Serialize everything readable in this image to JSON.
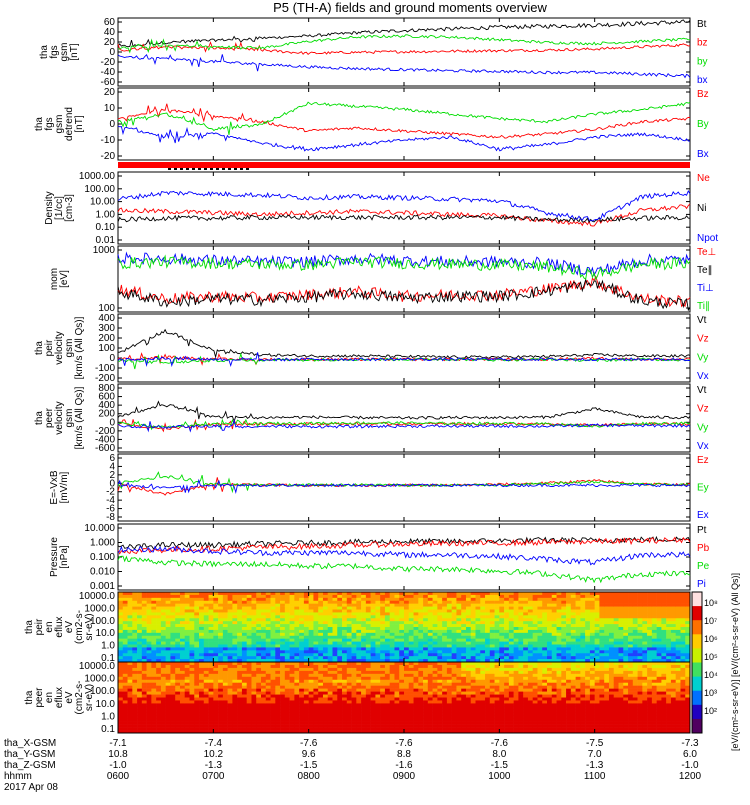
{
  "title": "P5 (TH-A) fields and ground moments overview",
  "colors": {
    "black": "#000000",
    "red": "#ff0000",
    "green": "#00dd00",
    "blue": "#0000ff"
  },
  "chart_data": [
    {
      "type": "line",
      "ylabel": [
        "tha",
        "fgs",
        "gsm",
        "[nT]"
      ],
      "yticks": [
        "60",
        "40",
        "20",
        "0",
        "-20",
        "-40",
        "-60"
      ],
      "ylim": [
        -60,
        65
      ],
      "legend": [
        {
          "name": "Bt",
          "color": "#000000"
        },
        {
          "name": "bz",
          "color": "#ff0000"
        },
        {
          "name": "by",
          "color": "#00dd00"
        },
        {
          "name": "bx",
          "color": "#0000ff"
        }
      ],
      "x": [
        "0600",
        "0630",
        "0700",
        "0730",
        "0800",
        "0830",
        "0900",
        "0930",
        "1000",
        "1030",
        "1100",
        "1130",
        "1200"
      ],
      "series": [
        {
          "name": "Bt",
          "values": [
            12,
            20,
            24,
            28,
            32,
            38,
            42,
            45,
            48,
            50,
            52,
            55,
            58
          ]
        },
        {
          "name": "bz",
          "values": [
            5,
            12,
            10,
            6,
            0,
            2,
            3,
            4,
            5,
            6,
            8,
            12,
            16
          ]
        },
        {
          "name": "by",
          "values": [
            10,
            15,
            12,
            10,
            22,
            30,
            32,
            30,
            25,
            20,
            18,
            22,
            26
          ]
        },
        {
          "name": "bx",
          "values": [
            -5,
            -10,
            -15,
            -20,
            -25,
            -28,
            -30,
            -32,
            -33,
            -35,
            -35,
            -38,
            -42
          ]
        }
      ]
    },
    {
      "type": "line",
      "ylabel": [
        "tha",
        "fgs",
        "gsm",
        "detrend",
        "[nT]"
      ],
      "yticks": [
        "20",
        "10",
        "0",
        "-10",
        "-20"
      ],
      "ylim": [
        -25,
        22
      ],
      "legend": [
        {
          "name": "Bz",
          "color": "#ff0000"
        },
        {
          "name": "By",
          "color": "#00dd00"
        },
        {
          "name": "Bx",
          "color": "#0000ff"
        }
      ],
      "x": [
        "0600",
        "0630",
        "0700",
        "0730",
        "0800",
        "0830",
        "0900",
        "0930",
        "1000",
        "1030",
        "1100",
        "1130",
        "1200"
      ],
      "series": [
        {
          "name": "Bz",
          "values": [
            2,
            8,
            4,
            0,
            -6,
            -4,
            -6,
            -8,
            -10,
            -8,
            -5,
            0,
            2
          ]
        },
        {
          "name": "By",
          "values": [
            0,
            5,
            -5,
            -2,
            12,
            10,
            8,
            5,
            2,
            0,
            5,
            8,
            12
          ]
        },
        {
          "name": "Bx",
          "values": [
            -3,
            -10,
            -8,
            -14,
            -18,
            -15,
            -12,
            -10,
            -18,
            -15,
            -10,
            -8,
            -12
          ]
        }
      ]
    },
    {
      "type": "line",
      "ylabel": [
        "Density",
        "[1/cc]",
        "[cm-3]"
      ],
      "yticks": [
        "1000.00",
        "100.00",
        "10.00",
        "1.00",
        "0.10",
        "0.01"
      ],
      "ylim": [
        0.01,
        2000
      ],
      "log": true,
      "legend": [
        {
          "name": "Ne",
          "color": "#ff0000"
        },
        {
          "name": "Ni",
          "color": "#000000"
        },
        {
          "name": "Npot",
          "color": "#0000ff"
        }
      ],
      "x": [
        "0600",
        "0630",
        "0700",
        "0730",
        "0800",
        "0830",
        "0900",
        "0930",
        "1000",
        "1030",
        "1100",
        "1130",
        "1200"
      ],
      "series": [
        {
          "name": "Ne",
          "values": [
            3,
            2.5,
            2,
            1.5,
            2,
            2.5,
            2,
            1.5,
            1.2,
            0.5,
            0.3,
            3,
            6
          ]
        },
        {
          "name": "Ni",
          "values": [
            0.6,
            0.8,
            0.8,
            0.9,
            0.9,
            0.9,
            0.9,
            0.9,
            0.9,
            0.6,
            0.6,
            0.8,
            0.9
          ]
        },
        {
          "name": "Npot",
          "values": [
            20,
            60,
            50,
            40,
            25,
            30,
            25,
            20,
            15,
            2,
            0.6,
            30,
            60
          ]
        }
      ]
    },
    {
      "type": "line",
      "ylabel": [
        "mom",
        "[eV]"
      ],
      "yticks": [
        "1000",
        "100"
      ],
      "ylim": [
        60,
        6000
      ],
      "log": true,
      "legend": [
        {
          "name": "Te⊥",
          "color": "#ff0000"
        },
        {
          "name": "Te∥",
          "color": "#000000"
        },
        {
          "name": "Ti⊥",
          "color": "#0000ff"
        },
        {
          "name": "Ti∥",
          "color": "#00dd00"
        }
      ],
      "x": [
        "0600",
        "0630",
        "0700",
        "0730",
        "0800",
        "0830",
        "0900",
        "0930",
        "1000",
        "1030",
        "1100",
        "1130",
        "1200"
      ],
      "series": [
        {
          "name": "Te⊥",
          "values": [
            300,
            150,
            180,
            160,
            200,
            250,
            180,
            200,
            200,
            300,
            500,
            150,
            120
          ]
        },
        {
          "name": "Te∥",
          "values": [
            250,
            120,
            150,
            140,
            170,
            220,
            160,
            180,
            180,
            260,
            450,
            130,
            100
          ]
        },
        {
          "name": "Ti⊥",
          "values": [
            2500,
            2500,
            2200,
            2000,
            2000,
            2500,
            2200,
            2000,
            2000,
            1800,
            1000,
            2200,
            2300
          ]
        },
        {
          "name": "Ti∥",
          "values": [
            1800,
            2000,
            1800,
            1700,
            1600,
            2000,
            1800,
            1700,
            1600,
            1400,
            800,
            1700,
            1800
          ]
        }
      ]
    },
    {
      "type": "line",
      "ylabel": [
        "tha",
        "peir",
        "velocity",
        "gsm",
        "[km/s (All Qs)]"
      ],
      "yticks": [
        "400",
        "300",
        "200",
        "100",
        "0",
        "-100",
        "-200"
      ],
      "ylim": [
        -200,
        400
      ],
      "legend": [
        {
          "name": "Vt",
          "color": "#000000"
        },
        {
          "name": "Vz",
          "color": "#ff0000"
        },
        {
          "name": "Vy",
          "color": "#00dd00"
        },
        {
          "name": "Vx",
          "color": "#0000ff"
        }
      ],
      "x": [
        "0600",
        "0630",
        "0700",
        "0730",
        "0800",
        "0830",
        "0900",
        "0930",
        "1000",
        "1030",
        "1100",
        "1130",
        "1200"
      ],
      "series": [
        {
          "name": "Vt",
          "values": [
            60,
            250,
            80,
            40,
            30,
            30,
            25,
            20,
            20,
            25,
            40,
            30,
            30
          ]
        },
        {
          "name": "Vz",
          "values": [
            0,
            20,
            0,
            0,
            0,
            0,
            0,
            0,
            0,
            0,
            10,
            0,
            0
          ]
        },
        {
          "name": "Vy",
          "values": [
            -10,
            -30,
            -10,
            -5,
            -5,
            0,
            0,
            0,
            -5,
            0,
            -10,
            0,
            -5
          ]
        },
        {
          "name": "Vx",
          "values": [
            -5,
            10,
            0,
            -5,
            0,
            0,
            0,
            0,
            0,
            0,
            0,
            0,
            0
          ]
        }
      ]
    },
    {
      "type": "line",
      "ylabel": [
        "tha",
        "peer",
        "velocity",
        "gsm",
        "[km/s (All Qs)]"
      ],
      "yticks": [
        "800",
        "600",
        "400",
        "200",
        "0",
        "-200",
        "-400",
        "-600"
      ],
      "ylim": [
        -650,
        850
      ],
      "legend": [
        {
          "name": "Vt",
          "color": "#000000"
        },
        {
          "name": "Vz",
          "color": "#ff0000"
        },
        {
          "name": "Vy",
          "color": "#00dd00"
        },
        {
          "name": "Vx",
          "color": "#0000ff"
        }
      ],
      "x": [
        "0600",
        "0630",
        "0700",
        "0730",
        "0800",
        "0830",
        "0900",
        "0930",
        "1000",
        "1030",
        "1100",
        "1130",
        "1200"
      ],
      "series": [
        {
          "name": "Vt",
          "values": [
            120,
            400,
            130,
            110,
            120,
            110,
            100,
            110,
            110,
            120,
            300,
            120,
            110
          ]
        },
        {
          "name": "Vz",
          "values": [
            -30,
            -150,
            -40,
            -30,
            -30,
            -30,
            -30,
            -30,
            -30,
            -40,
            -60,
            -30,
            -30
          ]
        },
        {
          "name": "Vy",
          "values": [
            -20,
            -100,
            -30,
            -20,
            -20,
            -10,
            -10,
            -20,
            -20,
            -30,
            -80,
            -20,
            -20
          ]
        },
        {
          "name": "Vx",
          "values": [
            -80,
            -100,
            -80,
            -80,
            -90,
            -90,
            -80,
            -80,
            -80,
            -80,
            -60,
            -70,
            -70
          ]
        }
      ]
    },
    {
      "type": "line",
      "ylabel": [
        "E=-VxB",
        "[mV/m]"
      ],
      "yticks": [
        "6",
        "4",
        "2",
        "0",
        "-2",
        "-4",
        "-6",
        "-8"
      ],
      "ylim": [
        -8,
        7
      ],
      "legend": [
        {
          "name": "Ez",
          "color": "#ff0000"
        },
        {
          "name": "Ey",
          "color": "#00dd00"
        },
        {
          "name": "Ex",
          "color": "#0000ff"
        }
      ],
      "x": [
        "0600",
        "0630",
        "0700",
        "0730",
        "0800",
        "0830",
        "0900",
        "0930",
        "1000",
        "1030",
        "1100",
        "1130",
        "1200"
      ],
      "series": [
        {
          "name": "Ez",
          "values": [
            0.2,
            -2,
            0.3,
            0.1,
            0,
            0,
            0,
            0,
            0.2,
            0.5,
            1,
            0.3,
            0.1
          ]
        },
        {
          "name": "Ey",
          "values": [
            0.5,
            2,
            0.2,
            0.1,
            0.1,
            0.1,
            0,
            0,
            0.1,
            0.3,
            0.8,
            0.2,
            0.1
          ]
        },
        {
          "name": "Ex",
          "values": [
            0,
            -0.5,
            0,
            0,
            0,
            0,
            0,
            0,
            0,
            0,
            0,
            0,
            0
          ]
        }
      ]
    },
    {
      "type": "line",
      "ylabel": [
        "Pressure",
        "[nPa]"
      ],
      "yticks": [
        "10.000",
        "1.000",
        "0.100",
        "0.010",
        "0.001"
      ],
      "ylim": [
        0.001,
        12
      ],
      "log": true,
      "legend": [
        {
          "name": "Pt",
          "color": "#000000"
        },
        {
          "name": "Pb",
          "color": "#ff0000"
        },
        {
          "name": "Pe",
          "color": "#00dd00"
        },
        {
          "name": "Pi",
          "color": "#0000ff"
        }
      ],
      "x": [
        "0600",
        "0630",
        "0700",
        "0730",
        "0800",
        "0830",
        "0900",
        "0930",
        "1000",
        "1030",
        "1100",
        "1130",
        "1200"
      ],
      "series": [
        {
          "name": "Pt",
          "values": [
            0.4,
            0.6,
            0.6,
            0.7,
            0.8,
            0.9,
            1.0,
            1.0,
            1.1,
            1.2,
            1.2,
            1.3,
            1.4
          ]
        },
        {
          "name": "Pb",
          "values": [
            0.25,
            0.3,
            0.35,
            0.45,
            0.5,
            0.6,
            0.7,
            0.75,
            0.8,
            0.9,
            1.0,
            1.1,
            1.3
          ]
        },
        {
          "name": "Pe",
          "values": [
            0.1,
            0.05,
            0.04,
            0.04,
            0.03,
            0.03,
            0.02,
            0.02,
            0.015,
            0.01,
            0.004,
            0.01,
            0.01
          ]
        },
        {
          "name": "Pi",
          "values": [
            0.3,
            0.35,
            0.25,
            0.2,
            0.2,
            0.2,
            0.15,
            0.15,
            0.12,
            0.08,
            0.05,
            0.15,
            0.15
          ]
        }
      ]
    },
    {
      "type": "heatmap",
      "ylabel": [
        "tha",
        "peir",
        "en",
        "eflux",
        "eV",
        "(cm2-s-",
        "sr-eV)"
      ],
      "yticks": [
        "10000.0",
        "1000.0",
        "100.0",
        "10.0",
        "1.0",
        "0.1"
      ]
    },
    {
      "type": "heatmap",
      "ylabel": [
        "tha",
        "peer",
        "en",
        "eflux",
        "eV",
        "(cm2-s-",
        "sr-eV)"
      ],
      "yticks": [
        "10000.0",
        "1000.0",
        "100.0",
        "10.0",
        "1.0",
        "0.1"
      ]
    }
  ],
  "colorbar": {
    "ticks": [
      "10⁸",
      "10⁷",
      "10⁶",
      "10⁵",
      "10⁴",
      "10³",
      "10²"
    ],
    "label": "[eV/(cm²-s-sr-eV)] [eV/(cm²-s-sr-eV) (All Qs)]"
  },
  "ephemeris": {
    "labels": [
      "tha_X-GSM",
      "tha_Y-GSM",
      "tha_Z-GSM",
      "hhmm",
      "2017 Apr 08"
    ],
    "x_gsm": [
      "-7.1",
      "-7.4",
      "-7.6",
      "-7.6",
      "-7.6",
      "-7.5",
      "-7.3"
    ],
    "y_gsm": [
      "10.8",
      "10.2",
      "9.6",
      "8.8",
      "8.0",
      "7.0",
      "6.0"
    ],
    "z_gsm": [
      "-1.0",
      "-1.3",
      "-1.5",
      "-1.6",
      "-1.5",
      "-1.3",
      "-1.0"
    ],
    "hhmm": [
      "0600",
      "0700",
      "0800",
      "0900",
      "1000",
      "1100",
      "1200"
    ]
  }
}
